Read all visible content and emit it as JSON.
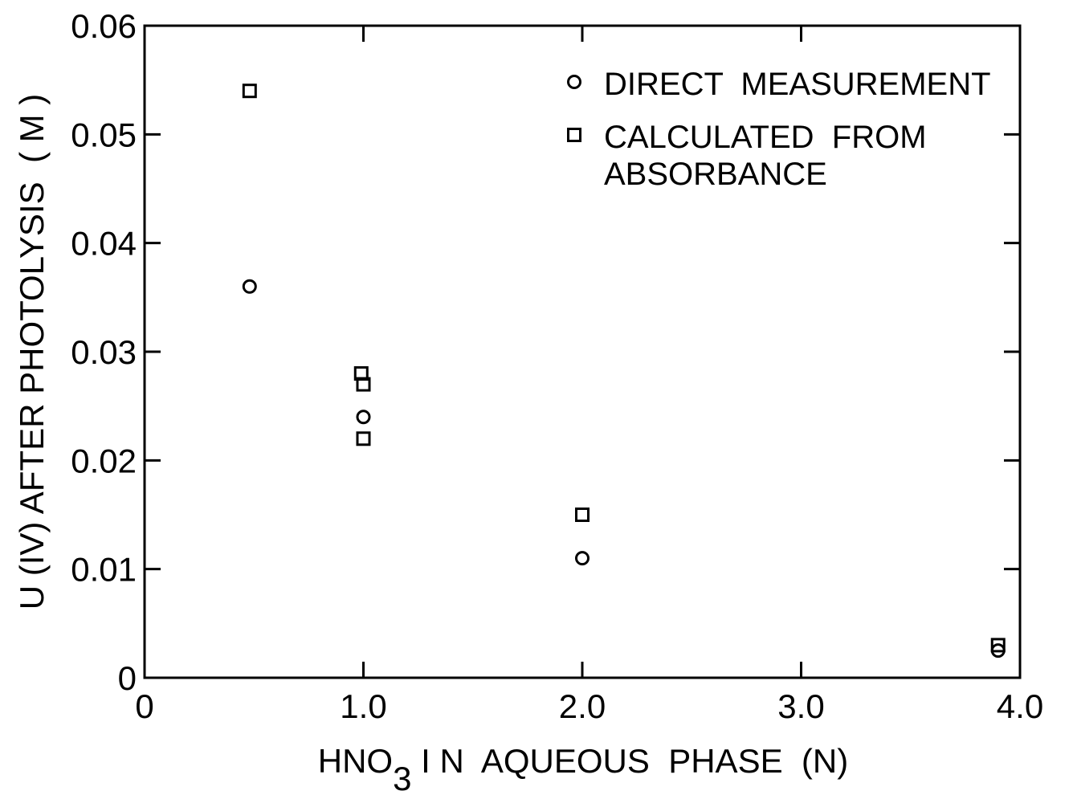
{
  "chart_data": {
    "type": "scatter",
    "title": "",
    "xlabel": "HNO",
    "xlabel_subscript": "3",
    "xlabel_rest": " I N  AQUEOUS  PHASE  (N)",
    "ylabel": "U (IV) AFTER PHOTOLYSIS  ( M )",
    "xlim": [
      0,
      4.0
    ],
    "ylim": [
      0,
      0.06
    ],
    "x_ticks": [
      0,
      1.0,
      2.0,
      3.0,
      4.0
    ],
    "x_tick_labels": [
      "0",
      "1.0",
      "2.0",
      "3.0",
      "4.0"
    ],
    "y_ticks": [
      0,
      0.01,
      0.02,
      0.03,
      0.04,
      0.05,
      0.06
    ],
    "y_tick_labels": [
      "0",
      "0.01",
      "0.02",
      "0.03",
      "0.04",
      "0.05",
      "0.06"
    ],
    "grid": false,
    "legend_position": "top-right",
    "series": [
      {
        "name": "DIRECT  MEASUREMENT",
        "marker": "circle",
        "points": [
          {
            "x": 0.48,
            "y": 0.036
          },
          {
            "x": 1.0,
            "y": 0.024
          },
          {
            "x": 2.0,
            "y": 0.011
          },
          {
            "x": 3.9,
            "y": 0.0025
          }
        ]
      },
      {
        "name": "CALCULATED  FROM ABSORBANCE",
        "marker": "square",
        "points": [
          {
            "x": 0.48,
            "y": 0.054
          },
          {
            "x": 0.99,
            "y": 0.028
          },
          {
            "x": 1.0,
            "y": 0.027
          },
          {
            "x": 1.0,
            "y": 0.022
          },
          {
            "x": 2.0,
            "y": 0.015
          },
          {
            "x": 3.9,
            "y": 0.003
          }
        ]
      }
    ],
    "legend": [
      {
        "marker": "circle",
        "lines": [
          "DIRECT  MEASUREMENT"
        ]
      },
      {
        "marker": "square",
        "lines": [
          "CALCULATED  FROM",
          "ABSORBANCE"
        ]
      }
    ],
    "colors": {
      "ink": "#000000",
      "background": "#ffffff"
    }
  }
}
